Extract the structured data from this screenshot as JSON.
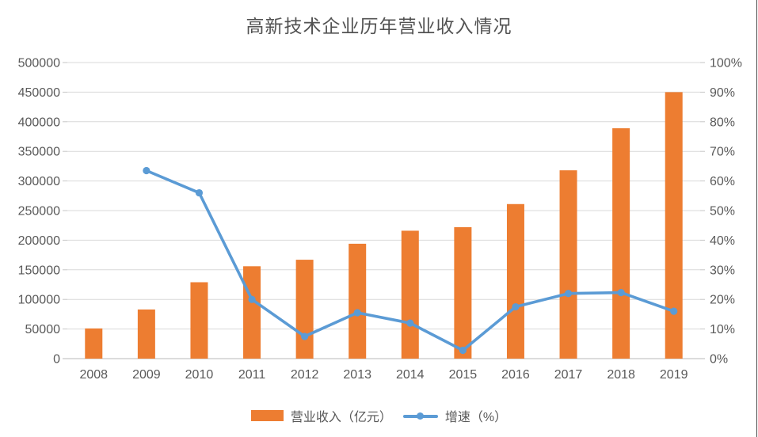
{
  "title": "高新技术企业历年营业收入情况",
  "colors": {
    "bar": "#ED7D31",
    "line": "#5B9BD5",
    "axis_text": "#595959",
    "gridline": "#D9D9D9",
    "axis_line": "#C6C6C6",
    "title_text": "#525252"
  },
  "legend": [
    {
      "label": "营业收入（亿元）",
      "swatch": "bar",
      "color": "#ED7D31"
    },
    {
      "label": "增速（%）",
      "swatch": "line",
      "color": "#5B9BD5"
    }
  ],
  "chart_data": {
    "type": "bar",
    "subtype": "combo-bar-line-dual-axis",
    "title": "高新技术企业历年营业收入情况",
    "categories": [
      "2008",
      "2009",
      "2010",
      "2011",
      "2012",
      "2013",
      "2014",
      "2015",
      "2016",
      "2017",
      "2018",
      "2019"
    ],
    "series": [
      {
        "name": "营业收入（亿元）",
        "type": "bar",
        "axis": "left",
        "color": "#ED7D31",
        "values": [
          51000,
          83000,
          129000,
          156000,
          167000,
          194000,
          216000,
          222000,
          261000,
          318000,
          389000,
          450000
        ]
      },
      {
        "name": "增速（%）",
        "type": "line",
        "axis": "right",
        "color": "#5B9BD5",
        "values": [
          null,
          63.5,
          56,
          20,
          7.5,
          15.5,
          12,
          2.8,
          17.5,
          22,
          22.3,
          16
        ]
      }
    ],
    "left_axis": {
      "min": 0,
      "max": 500000,
      "step": 50000,
      "suffix": ""
    },
    "right_axis": {
      "min": 0,
      "max": 100,
      "step": 10,
      "suffix": "%"
    },
    "xlabel": "",
    "ylabel_left": "",
    "ylabel_right": "",
    "grid": true,
    "legend_position": "bottom"
  }
}
